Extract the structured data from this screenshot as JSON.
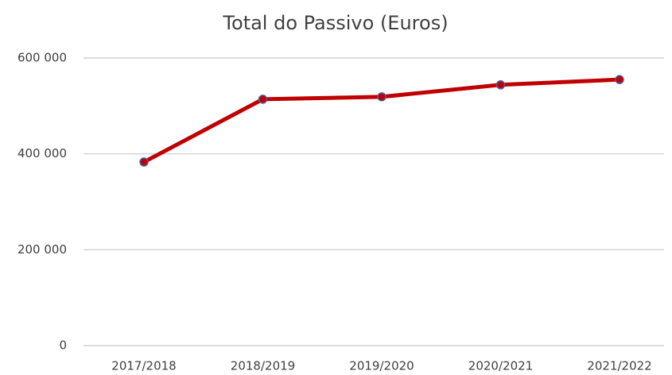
{
  "chart_data": {
    "type": "line",
    "title": "Total do Passivo (Euros)",
    "categories": [
      "2017/2018",
      "2018/2019",
      "2019/2020",
      "2020/2021",
      "2021/2022"
    ],
    "values": [
      383000,
      514000,
      519000,
      544000,
      555000
    ],
    "color": "#c00000",
    "marker_edge_color": "#4a5fa8",
    "ylim": [
      0,
      600000
    ],
    "yticks": [
      0,
      {
        "value": 200000,
        "label": "200 000"
      },
      {
        "value": 400000,
        "label": "400 000"
      },
      {
        "value": 600000,
        "label": "600 000"
      }
    ],
    "grid": true
  }
}
